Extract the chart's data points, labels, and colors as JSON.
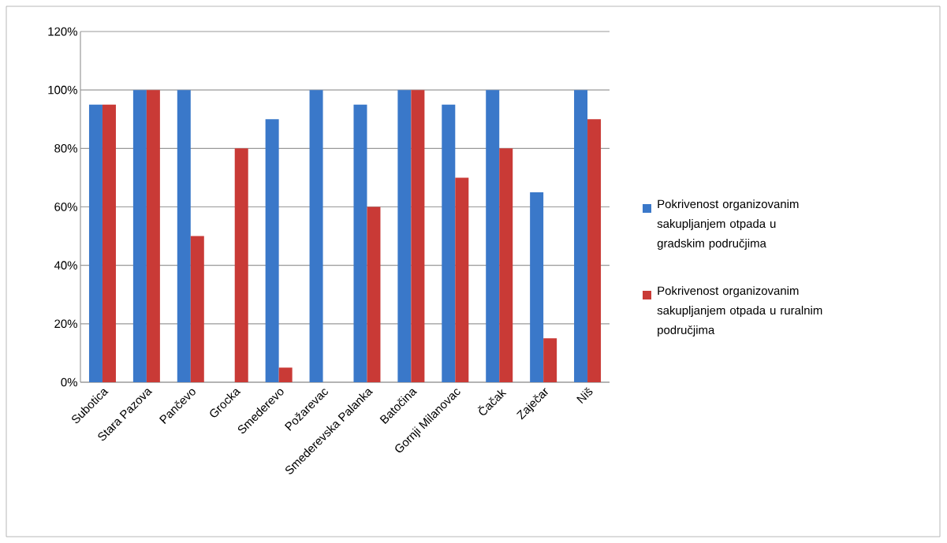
{
  "chart_data": {
    "type": "bar",
    "categories": [
      "Subotica",
      "Stara Pazova",
      "Pančevo",
      "Grocka",
      "Smederevo",
      "Požarevac",
      "Smederevska Palanka",
      "Batočina",
      "Gornji Milanovac",
      "Čačak",
      "Zaječar",
      "Niš"
    ],
    "series": [
      {
        "name": "Pokrivenost organizovanim sakupljanjem otpada u gradskim područjima",
        "color": "#3a78c9",
        "values": [
          95,
          100,
          100,
          0,
          90,
          100,
          95,
          100,
          95,
          100,
          65,
          100
        ]
      },
      {
        "name": "Pokrivenost organizovanim sakupljanjem otpada u ruralnim područjima",
        "color": "#c93a36",
        "values": [
          95,
          100,
          50,
          80,
          5,
          0,
          60,
          100,
          70,
          80,
          15,
          90
        ]
      }
    ],
    "ylim": [
      0,
      120
    ],
    "yticks": [
      {
        "value": 0,
        "label": "0%"
      },
      {
        "value": 20,
        "label": "20%"
      },
      {
        "value": 40,
        "label": "40%"
      },
      {
        "value": 60,
        "label": "60%"
      },
      {
        "value": 80,
        "label": "80%"
      },
      {
        "value": 100,
        "label": "100%"
      },
      {
        "value": 120,
        "label": "120%"
      }
    ],
    "grid": "y",
    "legend": "right"
  }
}
